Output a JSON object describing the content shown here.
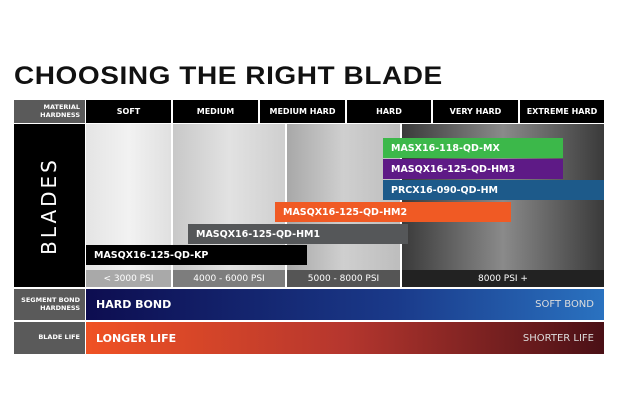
{
  "title": "CHOOSING THE RIGHT BLADE",
  "labels": {
    "material": "MATERIAL HARDNESS",
    "blades": "BLADES",
    "bond": "SEGMENT BOND HARDNESS",
    "life": "BLADE LIFE"
  },
  "hardness": [
    "SOFT",
    "MEDIUM",
    "MEDIUM HARD",
    "HARD",
    "VERY HARD",
    "EXTREME HARD"
  ],
  "psi": [
    "< 3000 PSI",
    "4000 - 6000 PSI",
    "5000 - 8000 PSI",
    "8000 PSI +"
  ],
  "blades": [
    {
      "name": "MASX16-118-QD-MX",
      "color": "#3cb84a"
    },
    {
      "name": "MASQX16-125-QD-HM3",
      "color": "#5e1a86"
    },
    {
      "name": "PRCX16-090-QD-HM",
      "color": "#1d5a8a"
    },
    {
      "name": "MASQX16-125-QD-HM2",
      "color": "#f05a24"
    },
    {
      "name": "MASQX16-125-QD-HM1",
      "color": "#555759"
    },
    {
      "name": "MASQX16-125-QD-KP",
      "color": "#000000"
    }
  ],
  "bond": {
    "left": "HARD BOND",
    "right": "SOFT BOND"
  },
  "life": {
    "left": "LONGER LIFE",
    "right": "SHORTER LIFE"
  }
}
